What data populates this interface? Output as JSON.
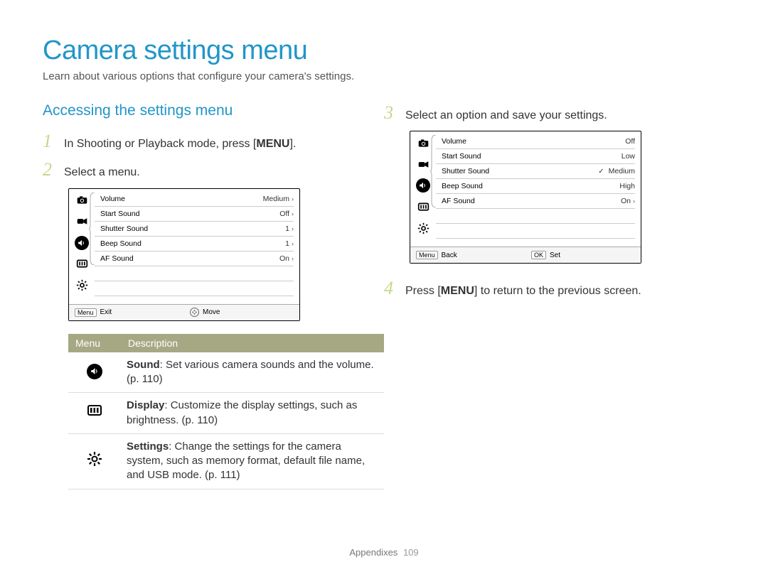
{
  "title": "Camera settings menu",
  "subtitle": "Learn about various options that configure your camera's settings.",
  "section_heading": "Accessing the settings menu",
  "steps": {
    "s1": {
      "num": "1",
      "text_pre": "In Shooting or Playback mode, press [",
      "text_btn": "MENU",
      "text_post": "]."
    },
    "s2": {
      "num": "2",
      "text": "Select a menu."
    },
    "s3": {
      "num": "3",
      "text": "Select an option and save your settings."
    },
    "s4": {
      "num": "4",
      "text_pre": "Press [",
      "text_btn": "MENU",
      "text_post": "] to return to the previous screen."
    }
  },
  "panel1": {
    "rows": [
      {
        "label": "Volume",
        "val": "Medium",
        "chev": true
      },
      {
        "label": "Start Sound",
        "val": "Off",
        "chev": true
      },
      {
        "label": "Shutter Sound",
        "val": "1",
        "chev": true
      },
      {
        "label": "Beep Sound",
        "val": "1",
        "chev": true
      },
      {
        "label": "AF Sound",
        "val": "On",
        "chev": true
      }
    ],
    "foot_left_btn": "Menu",
    "foot_left_txt": "Exit",
    "foot_right_txt": "Move"
  },
  "panel2": {
    "rows": [
      {
        "label": "Volume",
        "val": "Off"
      },
      {
        "label": "Start Sound",
        "val": "Low"
      },
      {
        "label": "Shutter Sound",
        "val": "Medium",
        "checked": true
      },
      {
        "label": "Beep Sound",
        "val": "High"
      },
      {
        "label": "AF Sound",
        "val": "On",
        "chev": true
      }
    ],
    "foot_left_btn": "Menu",
    "foot_left_txt": "Back",
    "foot_right_btn": "OK",
    "foot_right_txt": "Set"
  },
  "table": {
    "head_menu": "Menu",
    "head_desc": "Description",
    "rows": {
      "r1": {
        "bold": "Sound",
        "rest": ": Set various camera sounds and the volume. (p. 110)"
      },
      "r2": {
        "bold": "Display",
        "rest": ": Customize the display settings, such as brightness. (p. 110)"
      },
      "r3": {
        "bold": "Settings",
        "rest": ": Change the settings for the camera system, such as memory format, default file name, and USB mode. (p. 111)"
      }
    }
  },
  "footer": {
    "label": "Appendixes",
    "page": "109"
  },
  "colors": {
    "accent": "#2196c9",
    "step_num": "#c2d98a",
    "table_head_bg": "#a6a884"
  }
}
